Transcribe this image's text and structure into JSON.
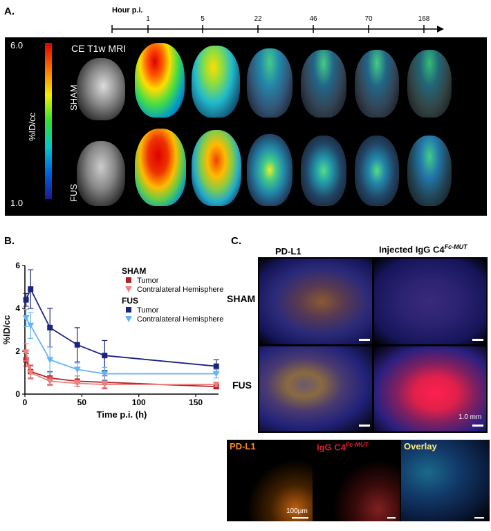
{
  "panel_a": {
    "letter": "A.",
    "timeline_label": "Hour p.i.",
    "timepoints": [
      "1",
      "5",
      "22",
      "46",
      "70",
      "168"
    ],
    "colorbar_max": "6.0",
    "colorbar_min": "1.0",
    "colorbar_unit": "%ID/cc",
    "mri_label": "CE T1w MRI",
    "row_labels": [
      "SHAM",
      "FUS"
    ]
  },
  "panel_b": {
    "letter": "B."
  },
  "chart_data": {
    "type": "line",
    "xlabel": "Time p.i. (h)",
    "ylabel": "%ID/cc",
    "xlim": [
      0,
      170
    ],
    "ylim": [
      0,
      6
    ],
    "xticks": [
      "0",
      "50",
      "100",
      "150"
    ],
    "yticks": [
      "0",
      "2",
      "4",
      "6"
    ],
    "legend_groups": [
      "SHAM",
      "FUS"
    ],
    "legend_placement": "top-right",
    "series": [
      {
        "name": "Tumor",
        "group": "SHAM",
        "color": "#b22222",
        "marker": "square",
        "x": [
          1,
          5,
          22,
          46,
          70,
          168
        ],
        "y": [
          1.6,
          1.05,
          0.75,
          0.6,
          0.55,
          0.35
        ],
        "err": [
          0.3,
          0.3,
          0.3,
          0.25,
          0.3,
          0.1
        ]
      },
      {
        "name": "Contralateral Hemisphere",
        "group": "SHAM",
        "color": "#f08080",
        "marker": "triangle-down",
        "x": [
          1,
          5,
          22,
          46,
          70,
          168
        ],
        "y": [
          1.95,
          1.0,
          0.6,
          0.5,
          0.45,
          0.45
        ],
        "err": [
          0.4,
          0.3,
          0.2,
          0.15,
          0.15,
          0.1
        ]
      },
      {
        "name": "Tumor",
        "group": "FUS",
        "color": "#1a237e",
        "marker": "square",
        "x": [
          1,
          5,
          22,
          46,
          70,
          168
        ],
        "y": [
          4.4,
          4.9,
          3.1,
          2.3,
          1.8,
          1.3
        ],
        "err": [
          0.3,
          0.9,
          0.9,
          0.8,
          0.7,
          0.3
        ]
      },
      {
        "name": "Contralateral Hemisphere",
        "group": "FUS",
        "color": "#64b5f6",
        "marker": "triangle-down",
        "x": [
          1,
          5,
          22,
          46,
          70,
          168
        ],
        "y": [
          3.55,
          3.2,
          1.6,
          1.15,
          0.95,
          0.95
        ],
        "err": [
          0.4,
          0.6,
          0.6,
          0.3,
          0.3,
          0.2
        ]
      }
    ]
  },
  "panel_c": {
    "letter": "C.",
    "col_labels": [
      "PD-L1",
      "Injected IgG C4"
    ],
    "col2_superscript": "Fc-MUT",
    "row_labels": [
      "SHAM",
      "FUS"
    ],
    "scale_label": "1.0 mm",
    "micro_labels": [
      "PD-L1",
      "IgG C4",
      "Overlay"
    ],
    "micro_superscript": "Fc-MUT",
    "micro_scale_label": "100µm",
    "colors": {
      "pdl1": "#ff8c1a",
      "igg": "#e01e2a",
      "overlay": "#ffeb7a"
    }
  }
}
